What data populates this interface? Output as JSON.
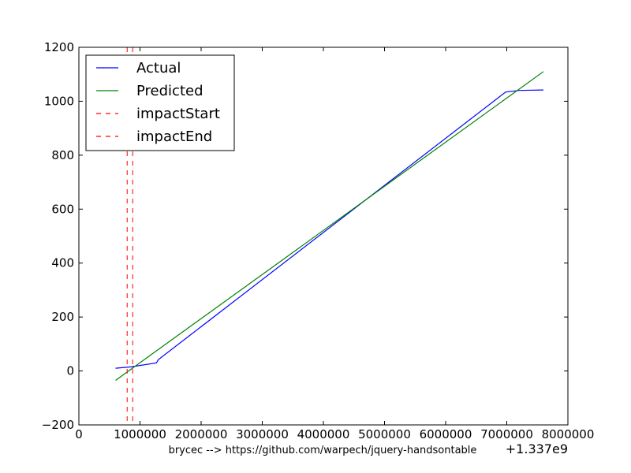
{
  "chart_data": {
    "type": "line",
    "xlabel": "brycec --> https://github.com/warpech/jquery-handsontable",
    "ylabel": "",
    "x_offset_label": "+1.337e9",
    "xlim": [
      0,
      8000000
    ],
    "ylim": [
      -200,
      1200
    ],
    "x_ticks": [
      0,
      1000000,
      2000000,
      3000000,
      4000000,
      5000000,
      6000000,
      7000000,
      8000000
    ],
    "x_tick_labels": [
      "0",
      "1000000",
      "2000000",
      "3000000",
      "4000000",
      "5000000",
      "6000000",
      "7000000",
      "8000000"
    ],
    "y_ticks": [
      -200,
      0,
      200,
      400,
      600,
      800,
      1000,
      1200
    ],
    "y_tick_labels": [
      "−200",
      "0",
      "200",
      "400",
      "600",
      "800",
      "1000",
      "1200"
    ],
    "grid": false,
    "legend_position": "top-left",
    "series": [
      {
        "name": "Actual",
        "color": "#0000ff",
        "style": "solid",
        "points": [
          [
            600000,
            10
          ],
          [
            850000,
            15
          ],
          [
            1270000,
            30
          ],
          [
            1300000,
            42
          ],
          [
            6980000,
            1034
          ],
          [
            7200000,
            1040
          ],
          [
            7600000,
            1042
          ]
        ]
      },
      {
        "name": "Predicted",
        "color": "#008000",
        "style": "solid",
        "points": [
          [
            600000,
            -35
          ],
          [
            7600000,
            1110
          ]
        ]
      }
    ],
    "vlines": [
      {
        "name": "impactStart",
        "x": 790000,
        "color": "#ff0000",
        "style": "dashed"
      },
      {
        "name": "impactEnd",
        "x": 880000,
        "color": "#ff0000",
        "style": "dashed"
      }
    ]
  }
}
